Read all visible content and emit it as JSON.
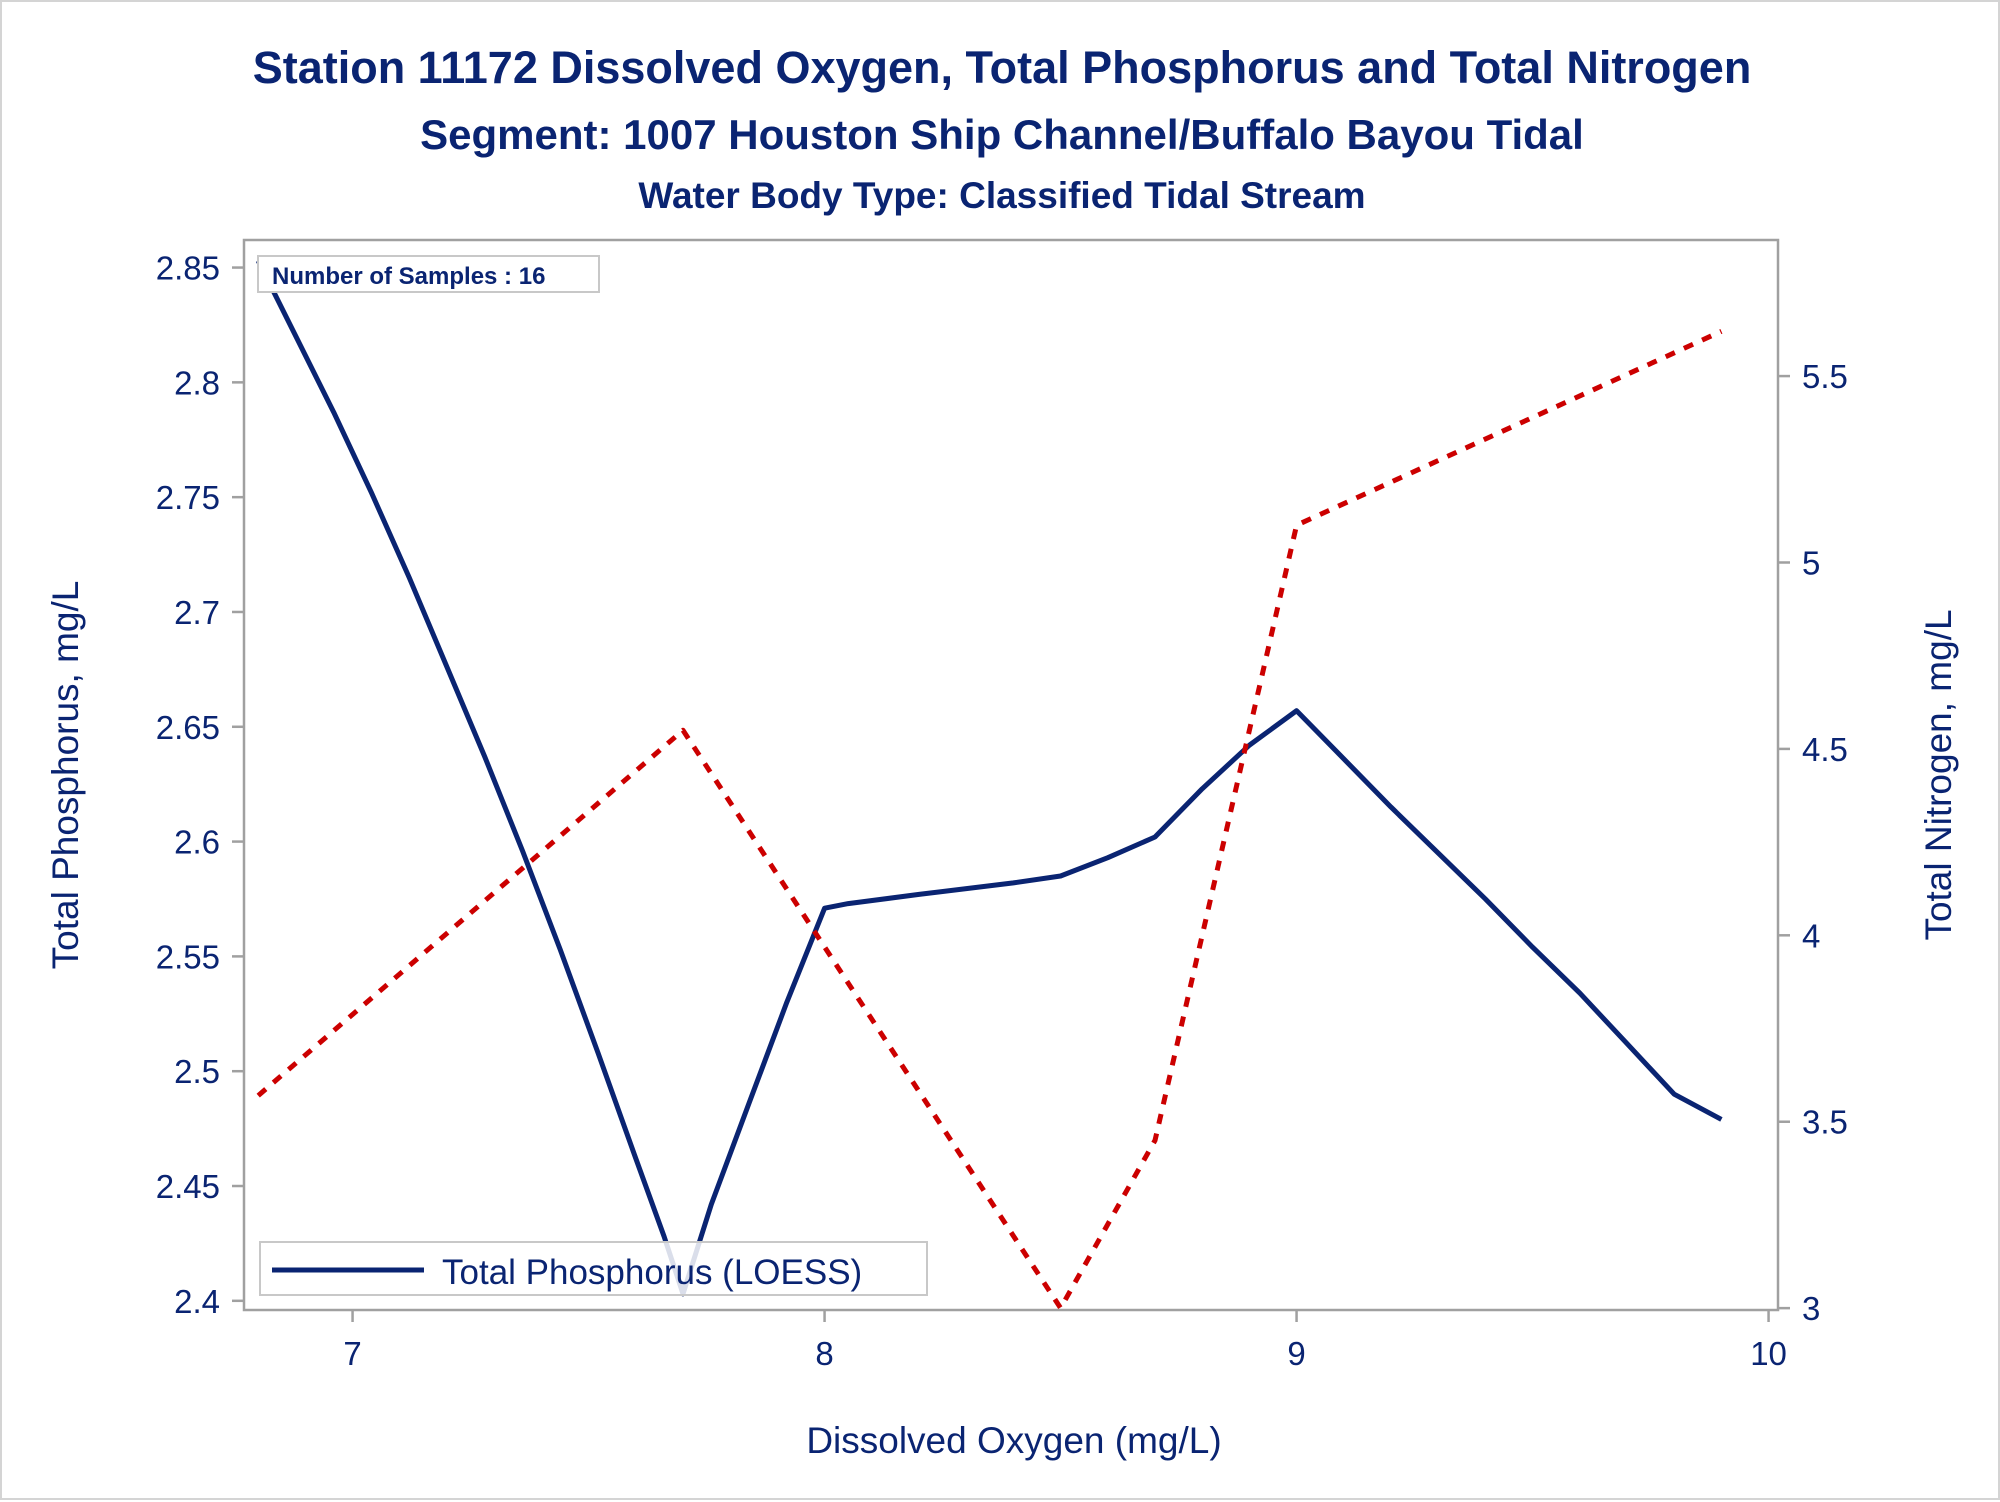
{
  "chart_data": {
    "type": "line",
    "title": "Station 11172  Dissolved Oxygen, Total Phosphorus and Total Nitrogen",
    "subtitle": "Segment: 1007  Houston Ship Channel/Buffalo Bayou Tidal",
    "subtitle2": "Water Body Type: Classified Tidal Stream",
    "xlabel": "Dissolved Oxygen (mg/L)",
    "ylabel": "Total Phosphorus, mg/L",
    "y2label": "Total Nitrogen, mg/L",
    "xlim": [
      6.77,
      10.02
    ],
    "ylim": [
      2.396,
      2.862
    ],
    "y2lim": [
      2.995,
      5.865
    ],
    "x_ticks": [
      "7",
      "8",
      "9",
      "10"
    ],
    "y_ticks": [
      "2.4",
      "2.45",
      "2.5",
      "2.55",
      "2.6",
      "2.65",
      "2.7",
      "2.75",
      "2.8",
      "2.85"
    ],
    "y2_ticks": [
      "3",
      "3.5",
      "4",
      "4.5",
      "5",
      "5.5"
    ],
    "annotation": "Number of Samples : 16",
    "legend": {
      "position": "bottom-left",
      "entries": [
        "Total Phosphorus (LOESS)"
      ]
    },
    "colors": {
      "phosphorus": "#0a2472",
      "nitrogen": "#cc0000",
      "text": "#0a2472",
      "axis": "#a0a0a0"
    },
    "series": [
      {
        "name": "Total Phosphorus (LOESS)",
        "axis": "left",
        "style": "solid",
        "x": [
          6.8,
          6.88,
          6.96,
          7.04,
          7.12,
          7.2,
          7.28,
          7.36,
          7.44,
          7.52,
          7.6,
          7.66,
          7.7,
          7.76,
          7.84,
          7.92,
          8.0,
          8.05,
          8.2,
          8.4,
          8.5,
          8.6,
          8.7,
          8.8,
          8.9,
          9.0,
          9.1,
          9.2,
          9.3,
          9.4,
          9.5,
          9.6,
          9.7,
          9.8,
          9.9
        ],
        "y": [
          2.853,
          2.82,
          2.787,
          2.752,
          2.715,
          2.676,
          2.637,
          2.596,
          2.553,
          2.508,
          2.462,
          2.428,
          2.403,
          2.442,
          2.486,
          2.53,
          2.571,
          2.573,
          2.577,
          2.582,
          2.585,
          2.593,
          2.602,
          2.623,
          2.642,
          2.657,
          2.636,
          2.615,
          2.595,
          2.575,
          2.554,
          2.534,
          2.512,
          2.49,
          2.479
        ]
      },
      {
        "name": "",
        "axis": "right",
        "style": "dotted",
        "x": [
          6.8,
          7.7,
          8.5,
          8.7,
          9.0,
          9.9
        ],
        "y": [
          3.57,
          4.55,
          3.0,
          3.45,
          5.1,
          5.62
        ]
      }
    ]
  }
}
